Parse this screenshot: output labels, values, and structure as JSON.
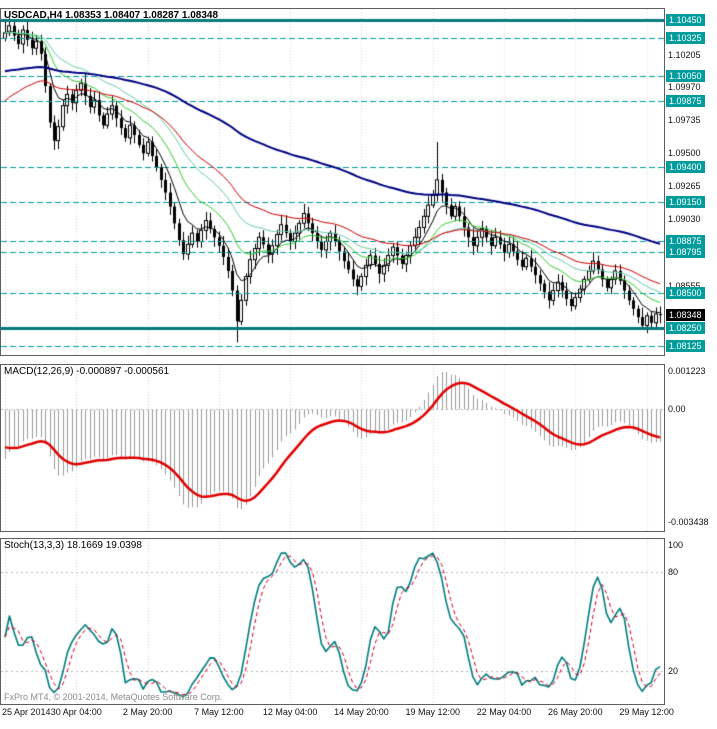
{
  "colors": {
    "background": "#ffffff",
    "panel_border": "#5f5f5f",
    "grid": "#d8d8d8",
    "candle_up_fill": "#ffffff",
    "candle_down_fill": "#000000",
    "candle_outline": "#000000",
    "level_solid": "#007a7a",
    "level_dashed": "#009c9c",
    "level_badge_bg": "#009c9c",
    "current_badge_bg": "#000000",
    "macd_histogram": "#9a9a9a",
    "macd_signal": "#e00000",
    "stoch_main": "#007c7c",
    "stoch_signal": "#cc0022",
    "copyright_text": "#8c8c8c"
  },
  "main_chart": {
    "title": "USDCAD,H4 1.08353 1.08407 1.08287 1.08348",
    "scale_labels": [
      "1.10205",
      "1.09970",
      "1.09735",
      "1.09500",
      "1.09265",
      "1.09030",
      "1.08555"
    ],
    "levels": [
      {
        "label": "1.10450",
        "price": 1.1045,
        "line": "solid"
      },
      {
        "label": "1.10325",
        "price": 1.10325,
        "line": "dashed"
      },
      {
        "label": "1.10050",
        "price": 1.1005,
        "line": "dashed"
      },
      {
        "label": "1.09875",
        "price": 1.09875,
        "line": "dashed"
      },
      {
        "label": "1.09400",
        "price": 1.094,
        "line": "dashed"
      },
      {
        "label": "1.09150",
        "price": 1.0915,
        "line": "dashed"
      },
      {
        "label": "1.08875",
        "price": 1.08875,
        "line": "dashed"
      },
      {
        "label": "1.08795",
        "price": 1.08795,
        "line": "dashed"
      },
      {
        "label": "1.08500",
        "price": 1.085,
        "line": "dashed"
      },
      {
        "label": "1.08250",
        "price": 1.0825,
        "line": "solid"
      },
      {
        "label": "1.08125",
        "price": 1.08125,
        "line": "dashed"
      }
    ],
    "current": {
      "label": "1.08348",
      "price": 1.08348
    }
  },
  "macd": {
    "title": "MACD(12,26,9) -0.000897 -0.000561",
    "scale": [
      {
        "label": "0.001223",
        "value": 0.001223
      },
      {
        "label": "0.00",
        "value": 0
      },
      {
        "label": "-0.003438",
        "value": -0.003438
      }
    ]
  },
  "stoch": {
    "title": "Stoch(13,3,3) 18.1669 19.0398",
    "scale": [
      {
        "label": "100",
        "value": 100
      },
      {
        "label": "80",
        "value": 80
      },
      {
        "label": "20",
        "value": 20
      }
    ],
    "levels": [
      80,
      20
    ]
  },
  "footer": {
    "copyright": "FxPro MT4, © 2001-2014, MetaQuotes Software Corp."
  },
  "time_axis": {
    "labels": [
      {
        "text": "25 Apr 2014",
        "bar": 0
      },
      {
        "text": "30 Apr 04:00",
        "bar": 16
      },
      {
        "text": "2 May 20:00",
        "bar": 32
      },
      {
        "text": "7 May 12:00",
        "bar": 48
      },
      {
        "text": "12 May 04:00",
        "bar": 64
      },
      {
        "text": "14 May 20:00",
        "bar": 80
      },
      {
        "text": "19 May 12:00",
        "bar": 96
      },
      {
        "text": "22 May 04:00",
        "bar": 112
      },
      {
        "text": "26 May 20:00",
        "bar": 128
      },
      {
        "text": "29 May 12:00",
        "bar": 144
      }
    ]
  },
  "chart_data": {
    "type": "candlestick",
    "symbol": "USDCAD",
    "timeframe": "H4",
    "current_bar": {
      "open": 1.08353,
      "high": 1.08407,
      "low": 1.08287,
      "close": 1.08348
    },
    "indicator_readouts": {
      "macd_main": -0.000897,
      "macd_signal": -0.000561,
      "stoch_k": 18.1669,
      "stoch_d": 19.0398
    },
    "price_axis": {
      "min": 1.0806,
      "max": 1.1053
    },
    "first_open": 1.1032,
    "closes": [
      1.1036,
      1.1041,
      1.1034,
      1.1028,
      1.1038,
      1.1031,
      1.1025,
      1.103,
      1.1021,
      1.0998,
      1.0972,
      1.0959,
      1.0969,
      1.0984,
      1.0992,
      1.0986,
      1.0995,
      1.1,
      1.0991,
      1.0983,
      1.0988,
      1.0977,
      1.097,
      1.0978,
      1.0984,
      1.0975,
      1.0968,
      1.0961,
      1.097,
      1.0963,
      1.0956,
      1.095,
      1.0958,
      1.0948,
      1.094,
      1.0931,
      1.0922,
      1.0912,
      1.09,
      1.0888,
      1.0878,
      1.0885,
      1.0893,
      1.0887,
      1.0895,
      1.0902,
      1.0896,
      1.089,
      1.0884,
      1.0876,
      1.0866,
      1.0852,
      1.083,
      1.0845,
      1.0862,
      1.0874,
      1.0882,
      1.089,
      1.0885,
      1.0878,
      1.0884,
      1.0892,
      1.0899,
      1.0893,
      1.0887,
      1.0893,
      1.09,
      1.0907,
      1.09,
      1.0893,
      1.0887,
      1.0881,
      1.0887,
      1.0893,
      1.0887,
      1.088,
      1.0873,
      1.0867,
      1.086,
      1.0855,
      1.0862,
      1.087,
      1.0877,
      1.0871,
      1.0864,
      1.087,
      1.0877,
      1.0883,
      1.0877,
      1.0871,
      1.0877,
      1.0884,
      1.089,
      1.0897,
      1.0905,
      1.0913,
      1.092,
      1.0931,
      1.0922,
      1.0913,
      1.0905,
      1.0912,
      1.0905,
      1.0897,
      1.089,
      1.0884,
      1.089,
      1.0896,
      1.089,
      1.0884,
      1.089,
      1.0885,
      1.0879,
      1.0885,
      1.088,
      1.0874,
      1.0869,
      1.0875,
      1.0869,
      1.0863,
      1.0857,
      1.0851,
      1.0845,
      1.0852,
      1.0858,
      1.0852,
      1.0846,
      1.0841,
      1.0847,
      1.0853,
      1.086,
      1.0866,
      1.0873,
      1.0867,
      1.086,
      1.0854,
      1.086,
      1.0866,
      1.0859,
      1.0852,
      1.0845,
      1.0839,
      1.0833,
      1.0827,
      1.0834,
      1.0829,
      1.08353,
      1.08348
    ],
    "extremes": {
      "0": {
        "h": 1.1045
      },
      "1": {
        "h": 1.1044
      },
      "11": {
        "l": 1.0953
      },
      "52": {
        "l": 1.0815
      },
      "97": {
        "h": 1.0958
      },
      "147": {
        "h": 1.08407,
        "l": 1.08287
      }
    },
    "moving_averages": [
      {
        "name": "ma-black",
        "period": 7,
        "color": "#000000",
        "width": 1,
        "seed": null
      },
      {
        "name": "ma-green",
        "period": 16,
        "color": "#32cd32",
        "width": 1,
        "seed": null
      },
      {
        "name": "ma-aqua",
        "period": 28,
        "color": "#66cdaa",
        "width": 1,
        "seed": null
      },
      {
        "name": "ma-red",
        "period": 40,
        "color": "#ce0000",
        "width": 1,
        "seed": 1.0985
      },
      {
        "name": "ma-blue",
        "period": 110,
        "color": "#000080",
        "width": 2,
        "seed": 1.1008
      }
    ],
    "macd": {
      "fast": 12,
      "slow": 26,
      "signal": 9,
      "max": 0.001223,
      "min": -0.003438,
      "seed_fast_offset": -0.0008,
      "seed_slow_offset": 0.0008,
      "seed_signal": -0.001
    },
    "stoch": {
      "k": 13,
      "slowing": 3,
      "d": 3,
      "max": 100,
      "min": 0
    }
  }
}
